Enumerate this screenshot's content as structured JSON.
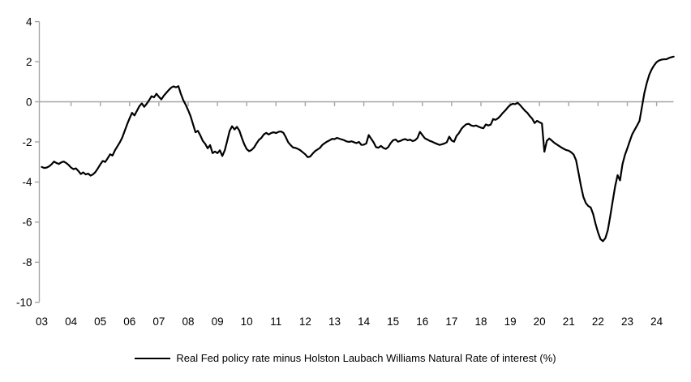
{
  "chart_data": {
    "type": "line",
    "title": "",
    "legend": "Real Fed policy rate minus Holston Laubach Williams Natural Rate of interest (%)",
    "legend_position": "bottom-center",
    "grid": "off",
    "frequency": "monthly",
    "x_start": "2003-01",
    "x_end": "2024-08",
    "xlabel": "",
    "ylabel": "",
    "ylim": [
      -10,
      4
    ],
    "y_ticks": [
      4,
      2,
      0,
      -2,
      -4,
      -6,
      -8,
      -10
    ],
    "x_tick_labels": [
      "03",
      "04",
      "05",
      "06",
      "07",
      "08",
      "09",
      "10",
      "11",
      "12",
      "13",
      "14",
      "15",
      "16",
      "17",
      "18",
      "19",
      "20",
      "21",
      "22",
      "23",
      "24"
    ],
    "line_color": "#000000",
    "axis_color": "#a6a6a6",
    "label_color": "#000000",
    "zero_axis": true,
    "values": [
      -3.25,
      -3.3,
      -3.28,
      -3.22,
      -3.12,
      -2.98,
      -3.05,
      -3.1,
      -3.02,
      -2.98,
      -3.05,
      -3.15,
      -3.28,
      -3.36,
      -3.32,
      -3.45,
      -3.6,
      -3.52,
      -3.62,
      -3.58,
      -3.68,
      -3.62,
      -3.5,
      -3.32,
      -3.12,
      -2.95,
      -3.0,
      -2.82,
      -2.62,
      -2.68,
      -2.42,
      -2.22,
      -2.02,
      -1.78,
      -1.45,
      -1.12,
      -0.82,
      -0.55,
      -0.68,
      -0.45,
      -0.22,
      -0.08,
      -0.25,
      -0.1,
      0.08,
      0.28,
      0.22,
      0.4,
      0.25,
      0.12,
      0.3,
      0.44,
      0.58,
      0.7,
      0.77,
      0.72,
      0.78,
      0.4,
      0.08,
      -0.15,
      -0.42,
      -0.72,
      -1.12,
      -1.52,
      -1.45,
      -1.68,
      -1.95,
      -2.1,
      -2.32,
      -2.16,
      -2.56,
      -2.48,
      -2.56,
      -2.42,
      -2.7,
      -2.42,
      -1.95,
      -1.45,
      -1.22,
      -1.38,
      -1.25,
      -1.44,
      -1.8,
      -2.12,
      -2.36,
      -2.46,
      -2.4,
      -2.28,
      -2.08,
      -1.9,
      -1.8,
      -1.63,
      -1.55,
      -1.63,
      -1.56,
      -1.52,
      -1.56,
      -1.5,
      -1.48,
      -1.54,
      -1.76,
      -2.02,
      -2.16,
      -2.28,
      -2.3,
      -2.35,
      -2.42,
      -2.52,
      -2.62,
      -2.76,
      -2.73,
      -2.59,
      -2.46,
      -2.38,
      -2.3,
      -2.15,
      -2.06,
      -1.98,
      -1.92,
      -1.85,
      -1.86,
      -1.8,
      -1.84,
      -1.88,
      -1.92,
      -1.98,
      -2.0,
      -1.97,
      -2.02,
      -2.06,
      -2.0,
      -2.15,
      -2.14,
      -2.08,
      -1.66,
      -1.84,
      -2.02,
      -2.26,
      -2.29,
      -2.2,
      -2.3,
      -2.35,
      -2.26,
      -2.06,
      -1.92,
      -1.88,
      -1.99,
      -1.95,
      -1.89,
      -1.86,
      -1.92,
      -1.89,
      -1.96,
      -1.92,
      -1.8,
      -1.5,
      -1.66,
      -1.82,
      -1.88,
      -1.95,
      -1.99,
      -2.05,
      -2.1,
      -2.15,
      -2.12,
      -2.08,
      -2.02,
      -1.74,
      -1.93,
      -1.99,
      -1.7,
      -1.56,
      -1.35,
      -1.22,
      -1.12,
      -1.1,
      -1.18,
      -1.21,
      -1.18,
      -1.24,
      -1.29,
      -1.32,
      -1.13,
      -1.18,
      -1.14,
      -0.86,
      -0.9,
      -0.82,
      -0.7,
      -0.55,
      -0.43,
      -0.28,
      -0.16,
      -0.1,
      -0.12,
      -0.05,
      -0.16,
      -0.3,
      -0.44,
      -0.55,
      -0.71,
      -0.84,
      -1.06,
      -0.95,
      -1.02,
      -1.08,
      -2.49,
      -1.95,
      -1.83,
      -1.93,
      -2.04,
      -2.12,
      -2.2,
      -2.28,
      -2.35,
      -2.41,
      -2.44,
      -2.52,
      -2.63,
      -2.92,
      -3.55,
      -4.2,
      -4.75,
      -5.05,
      -5.2,
      -5.27,
      -5.6,
      -6.1,
      -6.52,
      -6.85,
      -6.95,
      -6.8,
      -6.4,
      -5.7,
      -4.95,
      -4.22,
      -3.66,
      -3.92,
      -3.12,
      -2.66,
      -2.32,
      -1.96,
      -1.62,
      -1.4,
      -1.18,
      -0.95,
      -0.25,
      0.45,
      0.95,
      1.35,
      1.62,
      1.82,
      1.98,
      2.06,
      2.1,
      2.12,
      2.12,
      2.18,
      2.22,
      2.25
    ]
  }
}
